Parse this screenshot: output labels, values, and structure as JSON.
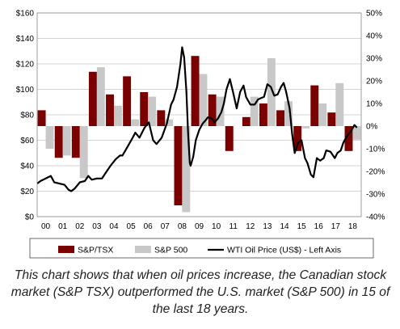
{
  "chart_data": {
    "type": "bar",
    "categories": [
      "00",
      "01",
      "02",
      "03",
      "04",
      "05",
      "06",
      "07",
      "08",
      "09",
      "10",
      "11",
      "12",
      "13",
      "14",
      "15",
      "16",
      "17",
      "18"
    ],
    "series": [
      {
        "name": "S&P/TSX",
        "kind": "bar",
        "axis": "right",
        "color": "#7b0000",
        "values": [
          7,
          -14,
          -14,
          24,
          14,
          22,
          15,
          7,
          -35,
          31,
          14,
          -11,
          4,
          10,
          7,
          -11,
          18,
          6,
          -11
        ]
      },
      {
        "name": "S&P 500",
        "kind": "bar",
        "axis": "right",
        "color": "#c8c8c8",
        "values": [
          -10,
          -13,
          -23,
          26,
          9,
          3,
          13,
          3,
          -38,
          23,
          13,
          0,
          13,
          30,
          11,
          -1,
          10,
          19,
          -6
        ]
      },
      {
        "name": "WTI Oil Price (US$) - Left Axis",
        "kind": "line",
        "axis": "left",
        "color": "#000000",
        "x": [
          2000.0,
          2000.2,
          2000.5,
          2000.8,
          2001.0,
          2001.3,
          2001.6,
          2001.85,
          2002.0,
          2002.2,
          2002.5,
          2002.8,
          2003.0,
          2003.2,
          2003.5,
          2003.8,
          2004.0,
          2004.3,
          2004.6,
          2004.85,
          2005.0,
          2005.3,
          2005.6,
          2005.75,
          2006.0,
          2006.3,
          2006.55,
          2006.8,
          2007.0,
          2007.3,
          2007.6,
          2007.85,
          2008.0,
          2008.2,
          2008.4,
          2008.5,
          2008.62,
          2008.75,
          2008.85,
          2008.95,
          2009.0,
          2009.15,
          2009.3,
          2009.5,
          2009.7,
          2009.9,
          2010.0,
          2010.25,
          2010.4,
          2010.6,
          2010.8,
          2010.95,
          2011.1,
          2011.3,
          2011.5,
          2011.7,
          2011.9,
          2012.1,
          2012.25,
          2012.5,
          2012.75,
          2012.95,
          2013.1,
          2013.3,
          2013.5,
          2013.7,
          2013.9,
          2014.1,
          2014.3,
          2014.45,
          2014.6,
          2014.8,
          2014.95,
          2015.1,
          2015.3,
          2015.5,
          2015.7,
          2015.85,
          2016.05,
          2016.2,
          2016.4,
          2016.6,
          2016.8,
          2016.95,
          2017.2,
          2017.45,
          2017.6,
          2017.8,
          2017.95,
          2018.15,
          2018.4,
          2018.6,
          2018.75
        ],
        "y": [
          26,
          28,
          30,
          32,
          27,
          26,
          25,
          21,
          20,
          22,
          27,
          28,
          32,
          29,
          30,
          30,
          34,
          40,
          45,
          48,
          48,
          55,
          62,
          66,
          62,
          70,
          74,
          60,
          57,
          62,
          73,
          88,
          92,
          102,
          120,
          133,
          125,
          98,
          65,
          42,
          40,
          47,
          60,
          68,
          73,
          76,
          78,
          77,
          74,
          77,
          82,
          89,
          100,
          108,
          97,
          85,
          98,
          103,
          94,
          88,
          88,
          92,
          93,
          94,
          104,
          102,
          95,
          96,
          102,
          105,
          98,
          85,
          65,
          50,
          58,
          60,
          46,
          42,
          33,
          31,
          46,
          44,
          46,
          52,
          51,
          46,
          50,
          52,
          58,
          63,
          67,
          72,
          70
        ]
      }
    ],
    "left_axis": {
      "min": 0,
      "max": 160,
      "step": 20,
      "ticks": [
        "$0",
        "$20",
        "$40",
        "$60",
        "$80",
        "$100",
        "$120",
        "$140",
        "$160"
      ]
    },
    "right_axis": {
      "min": -40,
      "max": 50,
      "step": 10,
      "ticks": [
        "-40%",
        "-30%",
        "-20%",
        "-10%",
        "0%",
        "10%",
        "20%",
        "30%",
        "40%",
        "50%"
      ]
    },
    "grid": true,
    "legend_placement": "bottom"
  },
  "caption": "This chart shows that when oil prices increase, the Canadian stock market (S&P TSX) outperformed the U.S. market (S&P 500) in 15 of the last 18 years."
}
